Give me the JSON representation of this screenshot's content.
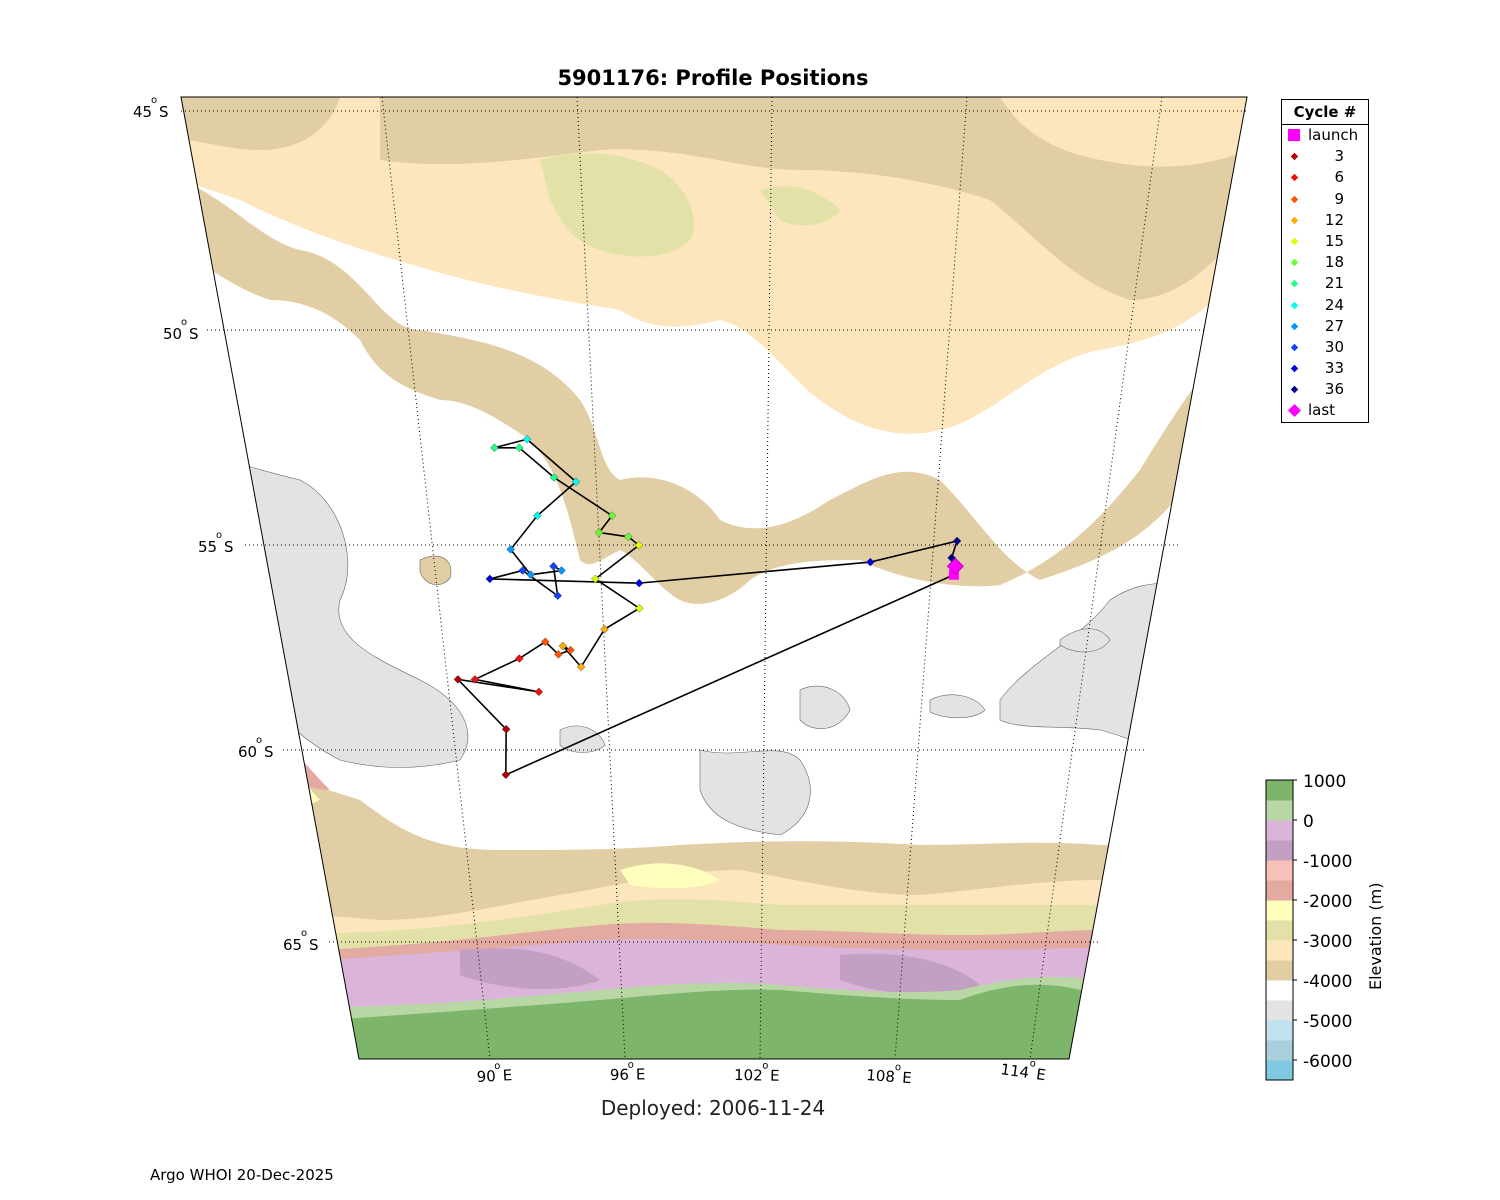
{
  "title": "5901176: Profile Positions",
  "subtitle": "Deployed: 2006-11-24",
  "credit": "Argo WHOI 20-Dec-2025",
  "map": {
    "latitude_labels": [
      "45",
      "50",
      "55",
      "60",
      "65"
    ],
    "longitude_labels": [
      "90",
      "96",
      "102",
      "108",
      "114"
    ],
    "latitude_suffix": "S",
    "longitude_suffix": "E",
    "degree_symbol": "o"
  },
  "legend": {
    "title": "Cycle #",
    "entries": [
      {
        "label": "launch",
        "color": "#ff00ff",
        "shape": "square"
      },
      {
        "label": "3",
        "color": "#b00000",
        "shape": "diamond"
      },
      {
        "label": "6",
        "color": "#ee1111",
        "shape": "diamond"
      },
      {
        "label": "9",
        "color": "#ff5500",
        "shape": "diamond"
      },
      {
        "label": "12",
        "color": "#ffaa00",
        "shape": "diamond"
      },
      {
        "label": "15",
        "color": "#ddff00",
        "shape": "diamond"
      },
      {
        "label": "18",
        "color": "#66ff33",
        "shape": "diamond"
      },
      {
        "label": "21",
        "color": "#22ff88",
        "shape": "diamond"
      },
      {
        "label": "24",
        "color": "#00ffee",
        "shape": "diamond"
      },
      {
        "label": "27",
        "color": "#0099ff",
        "shape": "diamond"
      },
      {
        "label": "30",
        "color": "#1144ff",
        "shape": "diamond"
      },
      {
        "label": "33",
        "color": "#0000dd",
        "shape": "diamond"
      },
      {
        "label": "36",
        "color": "#000088",
        "shape": "diamond"
      },
      {
        "label": "last",
        "color": "#ff00ff",
        "shape": "bigdiamond"
      }
    ]
  },
  "colorbar": {
    "label": "Elevation (m)",
    "tick_labels": [
      "1000",
      "0",
      "-1000",
      "-2000",
      "-3000",
      "-4000",
      "-5000",
      "-6000"
    ],
    "band_colors": [
      "#7db56a",
      "#b9d7a5",
      "#dab5d9",
      "#c39fc3",
      "#f5c1b9",
      "#e3aaa2",
      "#fefebd",
      "#e2e2a8",
      "#fde5bd",
      "#e2cea4",
      "#ffffff",
      "#e3e3e3",
      "#c0e2ee",
      "#a9cfdc",
      "#7fc8df"
    ]
  },
  "chart_data": {
    "type": "scatter",
    "title": "5901176: Profile Positions",
    "xlabel": "",
    "ylabel": "",
    "projection": "conic, 45°S–68°S, 84°E–116°E",
    "grid": true,
    "legend_position": "outside-right",
    "track": [
      {
        "cycle": 1,
        "lon": 109.8,
        "lat": -55.8,
        "color": "#ff00ff",
        "marker": "launch"
      },
      {
        "cycle": 2,
        "lon": 91.7,
        "lat": -60.6
      },
      {
        "cycle": 3,
        "lon": 91.9,
        "lat": -59.5
      },
      {
        "cycle": 4,
        "lon": 90.1,
        "lat": -58.3
      },
      {
        "cycle": 5,
        "lon": 93.4,
        "lat": -58.6
      },
      {
        "cycle": 6,
        "lon": 90.8,
        "lat": -58.3
      },
      {
        "cycle": 7,
        "lon": 92.7,
        "lat": -57.8
      },
      {
        "cycle": 8,
        "lon": 93.8,
        "lat": -57.4
      },
      {
        "cycle": 9,
        "lon": 94.3,
        "lat": -57.7
      },
      {
        "cycle": 10,
        "lon": 94.8,
        "lat": -57.6
      },
      {
        "cycle": 11,
        "lon": 94.5,
        "lat": -57.5
      },
      {
        "cycle": 12,
        "lon": 95.2,
        "lat": -58.0
      },
      {
        "cycle": 13,
        "lon": 96.2,
        "lat": -57.1
      },
      {
        "cycle": 14,
        "lon": 97.6,
        "lat": -56.6
      },
      {
        "cycle": 15,
        "lon": 95.9,
        "lat": -55.9
      },
      {
        "cycle": 16,
        "lon": 97.6,
        "lat": -55.1
      },
      {
        "cycle": 17,
        "lon": 97.2,
        "lat": -54.9
      },
      {
        "cycle": 18,
        "lon": 96.1,
        "lat": -54.8
      },
      {
        "cycle": 19,
        "lon": 96.6,
        "lat": -54.4
      },
      {
        "cycle": 20,
        "lon": 94.5,
        "lat": -53.5
      },
      {
        "cycle": 21,
        "lon": 93.3,
        "lat": -52.8
      },
      {
        "cycle": 22,
        "lon": 92.4,
        "lat": -52.8
      },
      {
        "cycle": 23,
        "lon": 93.6,
        "lat": -52.6
      },
      {
        "cycle": 24,
        "lon": 95.3,
        "lat": -53.6
      },
      {
        "cycle": 25,
        "lon": 93.8,
        "lat": -54.4
      },
      {
        "cycle": 26,
        "lon": 92.7,
        "lat": -55.2
      },
      {
        "cycle": 27,
        "lon": 93.4,
        "lat": -55.8
      },
      {
        "cycle": 28,
        "lon": 94.6,
        "lat": -55.7
      },
      {
        "cycle": 29,
        "lon": 94.3,
        "lat": -55.6
      },
      {
        "cycle": 30,
        "lon": 94.4,
        "lat": -56.3
      },
      {
        "cycle": 31,
        "lon": 93.1,
        "lat": -55.7
      },
      {
        "cycle": 32,
        "lon": 91.8,
        "lat": -55.9
      },
      {
        "cycle": 33,
        "lon": 97.6,
        "lat": -56.0
      },
      {
        "cycle": 34,
        "lon": 106.5,
        "lat": -55.5
      },
      {
        "cycle": 35,
        "lon": 109.7,
        "lat": -55.0
      },
      {
        "cycle": 36,
        "lon": 109.6,
        "lat": -55.4
      },
      {
        "cycle": 37,
        "lon": 109.8,
        "lat": -55.6,
        "marker": "last"
      }
    ]
  }
}
